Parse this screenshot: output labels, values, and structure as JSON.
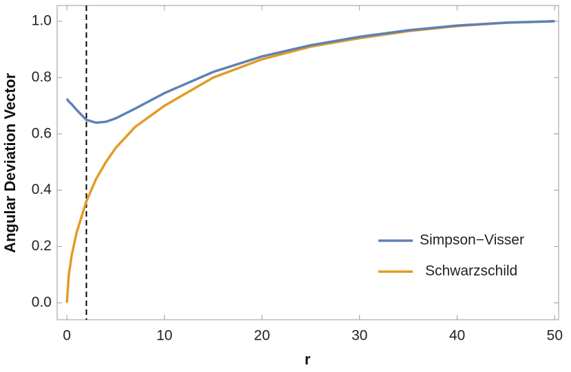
{
  "chart_data": {
    "type": "line",
    "xlabel": "r",
    "ylabel": "Angular Deviation Vector",
    "x": [
      0,
      0.2,
      0.5,
      1,
      2,
      3,
      4,
      5,
      7,
      10,
      15,
      20,
      25,
      30,
      35,
      40,
      45,
      50
    ],
    "series": [
      {
        "name": "Simpson−Visser",
        "color": "#5e81b5",
        "values": [
          0.725,
          0.715,
          0.705,
          0.685,
          0.65,
          0.64,
          0.643,
          0.655,
          0.69,
          0.745,
          0.82,
          0.875,
          0.915,
          0.945,
          0.968,
          0.985,
          0.995,
          1.0
        ]
      },
      {
        "name": "Schwarzschild",
        "color": "#e19c24",
        "values": [
          0,
          0.1,
          0.17,
          0.25,
          0.36,
          0.44,
          0.5,
          0.55,
          0.625,
          0.7,
          0.8,
          0.865,
          0.91,
          0.94,
          0.965,
          0.983,
          0.995,
          1.0
        ]
      }
    ],
    "vline": 2,
    "xlim": [
      -1,
      50.4
    ],
    "ylim": [
      -0.06,
      1.056
    ],
    "xticks": [
      0,
      10,
      20,
      30,
      40,
      50
    ],
    "yticks": [
      {
        "value": 0,
        "label": "0.0"
      },
      0.2,
      0.4,
      0.6,
      0.8,
      {
        "value": 1,
        "label": "1.0"
      }
    ],
    "legend": "lower right"
  }
}
